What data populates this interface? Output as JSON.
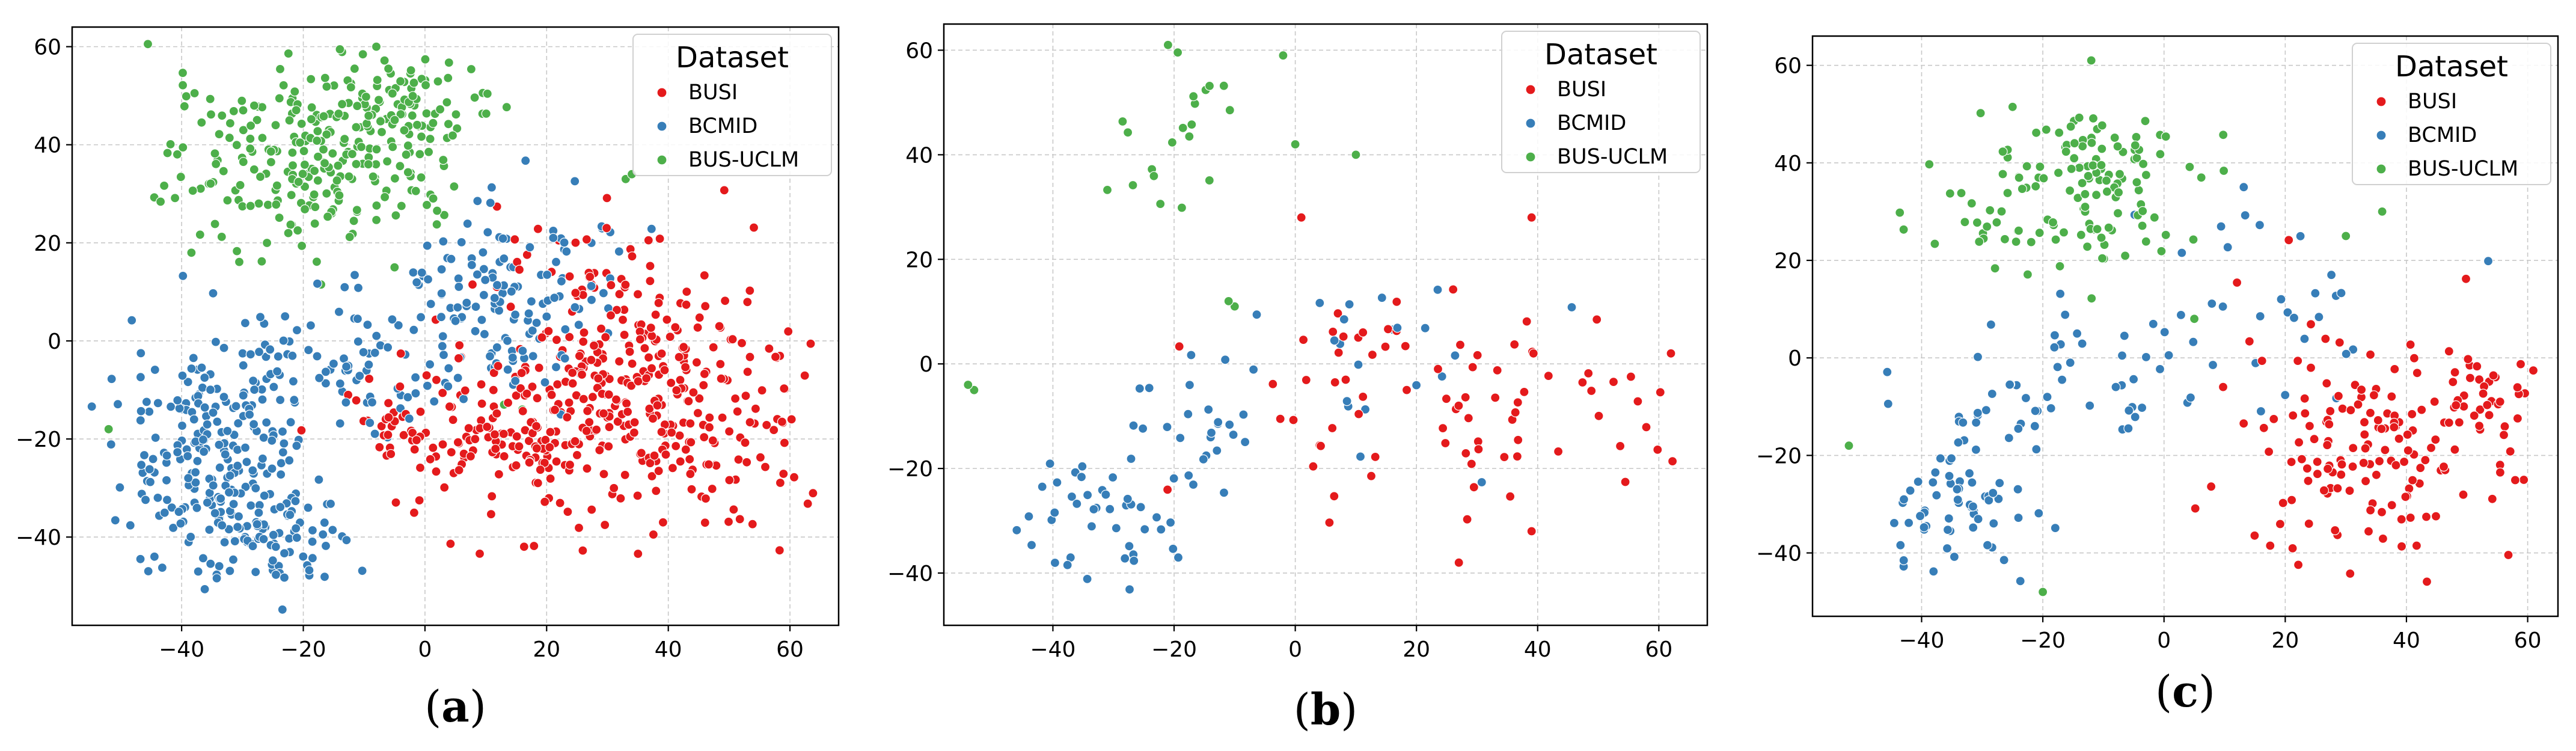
{
  "chart_data": [
    {
      "type": "scatter",
      "title": "",
      "xlabel": "",
      "ylabel": "",
      "xlim": [
        -58,
        68
      ],
      "ylim": [
        -58,
        64
      ],
      "xticks": [
        -40,
        -20,
        0,
        20,
        40,
        60
      ],
      "yticks": [
        -40,
        -20,
        0,
        20,
        40,
        60
      ],
      "grid": true,
      "legend": {
        "title": "Dataset",
        "placement": "top-right",
        "labels": [
          "BUSI",
          "BCMID",
          "BUS-UCLM"
        ]
      },
      "panel_label": {
        "open": "(",
        "letter": "a",
        "close": ")"
      },
      "clusters": [
        {
          "series": "BUSI",
          "x": 40,
          "y": -12,
          "sx": 12,
          "sy": 12,
          "n": 240
        },
        {
          "series": "BUSI",
          "x": 15,
          "y": -20,
          "sx": 10,
          "sy": 8,
          "n": 160
        },
        {
          "series": "BUSI",
          "x": 30,
          "y": 8,
          "sx": 10,
          "sy": 12,
          "n": 70
        },
        {
          "series": "BUSI",
          "x": -5,
          "y": -18,
          "sx": 5,
          "sy": 6,
          "n": 30
        },
        {
          "series": "BCMID",
          "x": -35,
          "y": -22,
          "sx": 7,
          "sy": 12,
          "n": 200
        },
        {
          "series": "BCMID",
          "x": -25,
          "y": -40,
          "sx": 6,
          "sy": 5,
          "n": 90
        },
        {
          "series": "BCMID",
          "x": 12,
          "y": 8,
          "sx": 9,
          "sy": 10,
          "n": 150
        },
        {
          "series": "BCMID",
          "x": -15,
          "y": -5,
          "sx": 8,
          "sy": 6,
          "n": 70
        },
        {
          "series": "BUS-UCLM",
          "x": -20,
          "y": 38,
          "sx": 11,
          "sy": 10,
          "n": 230
        },
        {
          "series": "BUS-UCLM",
          "x": -2,
          "y": 45,
          "sx": 7,
          "sy": 6,
          "n": 90
        }
      ],
      "points": [
        {
          "series": "BUS-UCLM",
          "x": -52,
          "y": -18
        },
        {
          "series": "BUS-UCLM",
          "x": 13,
          "y": -13
        },
        {
          "series": "BUS-UCLM",
          "x": 16,
          "y": -14
        },
        {
          "series": "BUS-UCLM",
          "x": -5,
          "y": 15
        },
        {
          "series": "BUS-UCLM",
          "x": 33,
          "y": 33
        },
        {
          "series": "BUS-UCLM",
          "x": 34,
          "y": 34
        },
        {
          "series": "BUS-UCLM",
          "x": -8,
          "y": 60
        }
      ]
    },
    {
      "type": "scatter",
      "title": "",
      "xlabel": "",
      "ylabel": "",
      "xlim": [
        -58,
        68
      ],
      "ylim": [
        -50,
        65
      ],
      "xticks": [
        -40,
        -20,
        0,
        20,
        40,
        60
      ],
      "yticks": [
        -40,
        -20,
        0,
        20,
        40,
        60
      ],
      "grid": true,
      "legend": {
        "title": "Dataset",
        "placement": "top-right",
        "labels": [
          "BUSI",
          "BCMID",
          "BUS-UCLM"
        ]
      },
      "panel_label": {
        "open": "(",
        "letter": "b",
        "close": ")"
      },
      "clusters": [
        {
          "series": "BUSI",
          "x": 35,
          "y": -10,
          "sx": 15,
          "sy": 12,
          "n": 60
        },
        {
          "series": "BUSI",
          "x": 0,
          "y": -8,
          "sx": 8,
          "sy": 10,
          "n": 20
        },
        {
          "series": "BCMID",
          "x": -32,
          "y": -28,
          "sx": 7,
          "sy": 8,
          "n": 45
        },
        {
          "series": "BCMID",
          "x": -15,
          "y": -12,
          "sx": 8,
          "sy": 6,
          "n": 25
        },
        {
          "series": "BCMID",
          "x": 15,
          "y": 5,
          "sx": 12,
          "sy": 10,
          "n": 20
        },
        {
          "series": "BUS-UCLM",
          "x": -14,
          "y": 47,
          "sx": 6,
          "sy": 6,
          "n": 14
        },
        {
          "series": "BUS-UCLM",
          "x": -28,
          "y": 32,
          "sx": 5,
          "sy": 5,
          "n": 6
        }
      ],
      "points": [
        {
          "series": "BUS-UCLM",
          "x": -54,
          "y": -4
        },
        {
          "series": "BUS-UCLM",
          "x": -53,
          "y": -5
        },
        {
          "series": "BUS-UCLM",
          "x": -11,
          "y": 12
        },
        {
          "series": "BUS-UCLM",
          "x": -10,
          "y": 11
        },
        {
          "series": "BUS-UCLM",
          "x": 10,
          "y": 40
        },
        {
          "series": "BUS-UCLM",
          "x": -21,
          "y": 61
        },
        {
          "series": "BUS-UCLM",
          "x": -2,
          "y": 59
        },
        {
          "series": "BUS-UCLM",
          "x": 0,
          "y": 42
        },
        {
          "series": "BUSI",
          "x": 1,
          "y": 28
        },
        {
          "series": "BUSI",
          "x": 39,
          "y": 28
        },
        {
          "series": "BUSI",
          "x": 62,
          "y": 2
        },
        {
          "series": "BUSI",
          "x": 27,
          "y": -38
        },
        {
          "series": "BUSI",
          "x": 39,
          "y": -32
        }
      ]
    },
    {
      "type": "scatter",
      "title": "",
      "xlabel": "",
      "ylabel": "",
      "xlim": [
        -58,
        65
      ],
      "ylim": [
        -53,
        66
      ],
      "xticks": [
        -40,
        -20,
        0,
        20,
        40,
        60
      ],
      "yticks": [
        -40,
        -20,
        0,
        20,
        40,
        60
      ],
      "grid": true,
      "legend": {
        "title": "Dataset",
        "placement": "top-right",
        "labels": [
          "BUSI",
          "BCMID",
          "BUS-UCLM"
        ]
      },
      "panel_label": {
        "open": "(",
        "letter": "c",
        "close": ")"
      },
      "clusters": [
        {
          "series": "BUSI",
          "x": 35,
          "y": -18,
          "sx": 12,
          "sy": 12,
          "n": 150
        },
        {
          "series": "BUSI",
          "x": 52,
          "y": -8,
          "sx": 5,
          "sy": 8,
          "n": 30
        },
        {
          "series": "BCMID",
          "x": -33,
          "y": -28,
          "sx": 6,
          "sy": 10,
          "n": 70
        },
        {
          "series": "BCMID",
          "x": -15,
          "y": -5,
          "sx": 10,
          "sy": 8,
          "n": 40
        },
        {
          "series": "BCMID",
          "x": 15,
          "y": 10,
          "sx": 12,
          "sy": 10,
          "n": 35
        },
        {
          "series": "BUS-UCLM",
          "x": -15,
          "y": 35,
          "sx": 11,
          "sy": 8,
          "n": 140
        }
      ],
      "points": [
        {
          "series": "BUS-UCLM",
          "x": -12,
          "y": 61
        },
        {
          "series": "BUS-UCLM",
          "x": -20,
          "y": -48
        },
        {
          "series": "BUS-UCLM",
          "x": -52,
          "y": -18
        },
        {
          "series": "BUS-UCLM",
          "x": 5,
          "y": 8
        },
        {
          "series": "BUS-UCLM",
          "x": 30,
          "y": 25
        },
        {
          "series": "BUS-UCLM",
          "x": 36,
          "y": 30
        }
      ]
    }
  ],
  "colors": {
    "BUSI": "#e41a1c",
    "BCMID": "#377eb8",
    "BUS-UCLM": "#4daf4a"
  }
}
